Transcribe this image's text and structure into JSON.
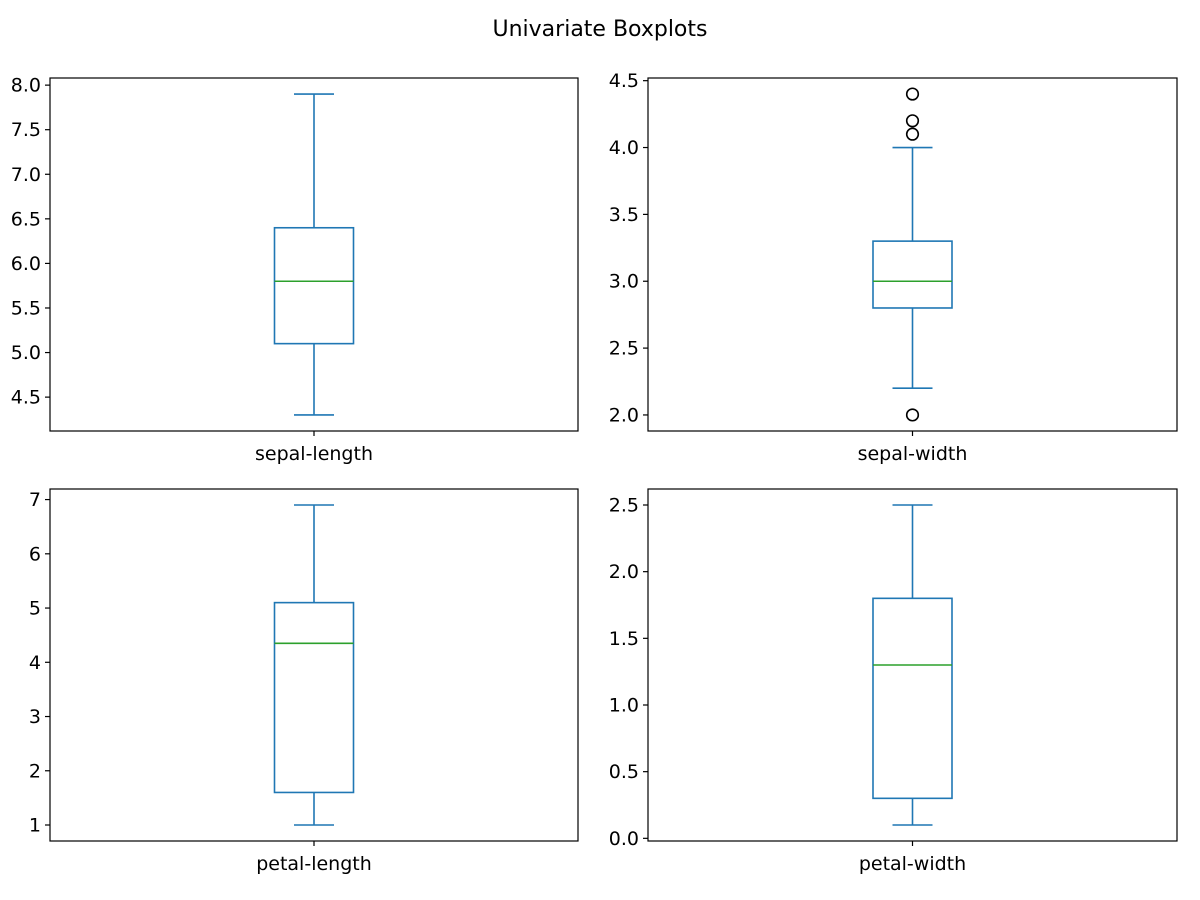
{
  "figure": {
    "title": "Univariate Boxplots"
  },
  "colors": {
    "box": "#1f77b4",
    "median": "#2ca02c",
    "axes": "#000000",
    "flier_edge": "#000000"
  },
  "chart_data": [
    {
      "type": "box",
      "category": "sepal-length",
      "ylim": [
        4.12,
        8.08
      ],
      "yticks": [
        4.5,
        5.0,
        5.5,
        6.0,
        6.5,
        7.0,
        7.5,
        8.0
      ],
      "ytick_labels": [
        "4.5",
        "5.0",
        "5.5",
        "6.0",
        "6.5",
        "7.0",
        "7.5",
        "8.0"
      ],
      "whisker_low": 4.3,
      "q1": 5.1,
      "median": 5.8,
      "q3": 6.4,
      "whisker_high": 7.9,
      "outliers": []
    },
    {
      "type": "box",
      "category": "sepal-width",
      "ylim": [
        1.88,
        4.52
      ],
      "yticks": [
        2.0,
        2.5,
        3.0,
        3.5,
        4.0,
        4.5
      ],
      "ytick_labels": [
        "2.0",
        "2.5",
        "3.0",
        "3.5",
        "4.0",
        "4.5"
      ],
      "whisker_low": 2.2,
      "q1": 2.8,
      "median": 3.0,
      "q3": 3.3,
      "whisker_high": 4.0,
      "outliers": [
        2.0,
        4.1,
        4.2,
        4.4
      ]
    },
    {
      "type": "box",
      "category": "petal-length",
      "ylim": [
        0.705,
        7.195
      ],
      "yticks": [
        1,
        2,
        3,
        4,
        5,
        6,
        7
      ],
      "ytick_labels": [
        "1",
        "2",
        "3",
        "4",
        "5",
        "6",
        "7"
      ],
      "whisker_low": 1.0,
      "q1": 1.6,
      "median": 4.35,
      "q3": 5.1,
      "whisker_high": 6.9,
      "outliers": []
    },
    {
      "type": "box",
      "category": "petal-width",
      "ylim": [
        -0.02,
        2.62
      ],
      "yticks": [
        0.0,
        0.5,
        1.0,
        1.5,
        2.0,
        2.5
      ],
      "ytick_labels": [
        "0.0",
        "0.5",
        "1.0",
        "1.5",
        "2.0",
        "2.5"
      ],
      "whisker_low": 0.1,
      "q1": 0.3,
      "median": 1.3,
      "q3": 1.8,
      "whisker_high": 2.5,
      "outliers": []
    }
  ]
}
